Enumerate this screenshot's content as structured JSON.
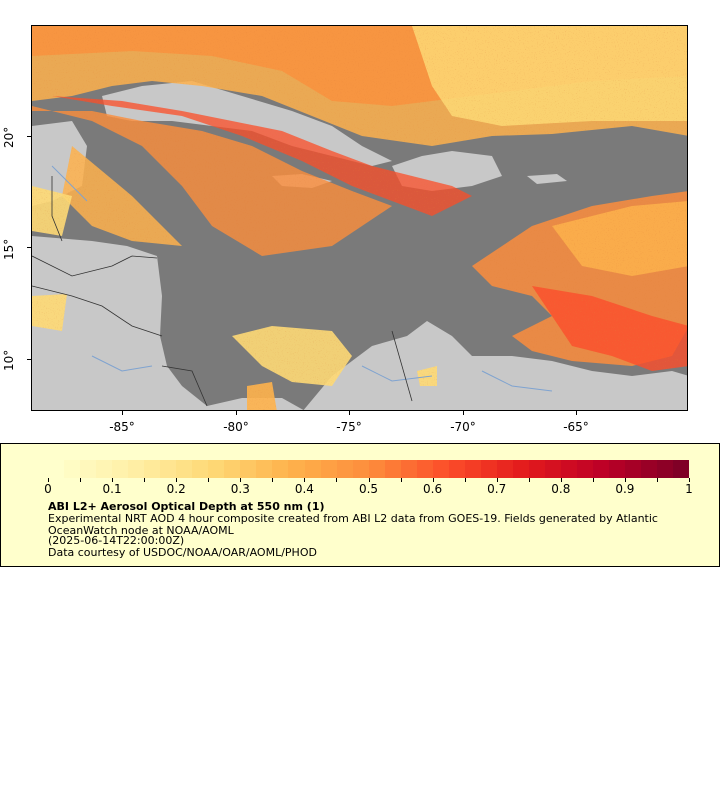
{
  "map": {
    "lat_labels": [
      "20°",
      "15°",
      "10°"
    ],
    "lon_labels": [
      "-85°",
      "-80°",
      "-75°",
      "-70°",
      "-65°"
    ],
    "colors": {
      "water": "#7a7a7a",
      "land": "#c8c8c8",
      "border": "#333333",
      "river": "#7fa3d0"
    }
  },
  "legend": {
    "colorbar_labels": [
      "0",
      "0.1",
      "0.2",
      "0.3",
      "0.4",
      "0.5",
      "0.6",
      "0.7",
      "0.8",
      "0.9",
      "1"
    ],
    "title": "ABI L2+ Aerosol Optical Depth at 550 nm (1)",
    "description": "Experimental NRT AOD 4 hour composite created from ABI L2 data from GOES-19. Fields generated by Atlantic OceanWatch node at NOAA/AOML",
    "timestamp": "(2025-06-14T22:00:00Z)",
    "credit": "Data courtesy of USDOC/NOAA/OAR/AOML/PHOD",
    "colorbar_colors": [
      "#ffffcc",
      "#ffefa5",
      "#fed976",
      "#feb24c",
      "#fd8d3c",
      "#fc4e2a",
      "#e31a1c",
      "#bd0026",
      "#800026"
    ]
  }
}
